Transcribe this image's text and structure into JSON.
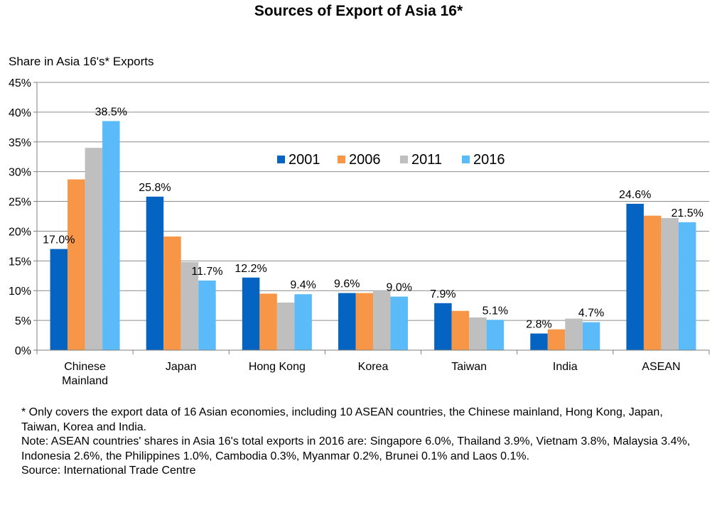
{
  "chart_data": {
    "type": "bar",
    "title": "Sources of Export of Asia 16*",
    "ylabel": "Share in Asia 16's* Exports",
    "xlabel": "",
    "ylim": [
      0,
      45
    ],
    "yticks": [
      "0%",
      "5%",
      "10%",
      "15%",
      "20%",
      "25%",
      "30%",
      "35%",
      "40%",
      "45%"
    ],
    "grid": true,
    "legend_position": "top-center",
    "categories": [
      [
        "Chinese",
        "Mainland"
      ],
      [
        "Japan"
      ],
      [
        "Hong Kong"
      ],
      [
        "Korea"
      ],
      [
        "Taiwan"
      ],
      [
        "India"
      ],
      [
        "ASEAN"
      ]
    ],
    "series": [
      {
        "name": "2001",
        "color": "#0563C1",
        "values": [
          17.0,
          25.8,
          12.2,
          9.6,
          7.9,
          2.8,
          24.6
        ]
      },
      {
        "name": "2006",
        "color": "#F79646",
        "values": [
          28.7,
          19.1,
          9.5,
          9.6,
          6.6,
          3.5,
          22.6
        ]
      },
      {
        "name": "2011",
        "color": "#BFBFBF",
        "values": [
          34.0,
          14.8,
          8.0,
          10.0,
          5.5,
          5.3,
          22.2
        ]
      },
      {
        "name": "2016",
        "color": "#5BBBF8",
        "values": [
          38.5,
          11.7,
          9.4,
          9.0,
          5.1,
          4.7,
          21.5
        ]
      }
    ],
    "data_labels": [
      {
        "series": 0,
        "category": 0,
        "text": "17.0%"
      },
      {
        "series": 3,
        "category": 0,
        "text": "38.5%"
      },
      {
        "series": 0,
        "category": 1,
        "text": "25.8%"
      },
      {
        "series": 3,
        "category": 1,
        "text": "11.7%"
      },
      {
        "series": 0,
        "category": 2,
        "text": "12.2%"
      },
      {
        "series": 3,
        "category": 2,
        "text": "9.4%"
      },
      {
        "series": 0,
        "category": 3,
        "text": "9.6%"
      },
      {
        "series": 3,
        "category": 3,
        "text": "9.0%"
      },
      {
        "series": 0,
        "category": 4,
        "text": "7.9%"
      },
      {
        "series": 3,
        "category": 4,
        "text": "5.1%"
      },
      {
        "series": 0,
        "category": 5,
        "text": "2.8%"
      },
      {
        "series": 3,
        "category": 5,
        "text": "4.7%"
      },
      {
        "series": 0,
        "category": 6,
        "text": "24.6%"
      },
      {
        "series": 3,
        "category": 6,
        "text": "21.5%"
      }
    ]
  },
  "footnotes": [
    "* Only covers the export data of 16 Asian economies, including 10 ASEAN countries, the Chinese mainland, Hong Kong, Japan, Taiwan, Korea and India.",
    "Note: ASEAN countries' shares in Asia 16's total exports in 2016 are: Singapore 6.0%, Thailand 3.9%, Vietnam 3.8%, Malaysia 3.4%, Indonesia 2.6%, the Philippines 1.0%, Cambodia 0.3%, Myanmar 0.2%, Brunei 0.1% and Laos 0.1%.",
    "Source: International Trade Centre"
  ]
}
